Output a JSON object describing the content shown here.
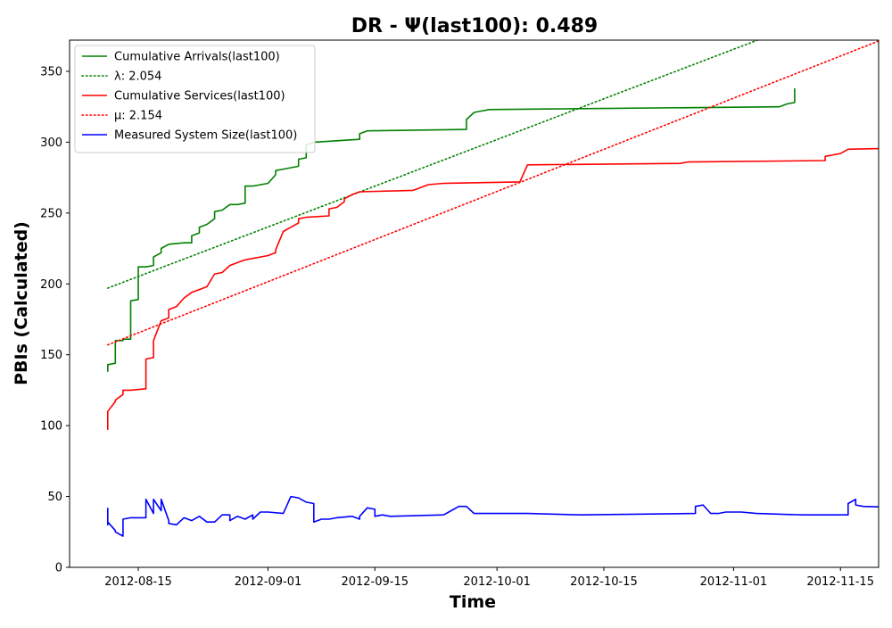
{
  "chart_data": {
    "type": "line",
    "title": "DR -  Ψ(last100): 0.489",
    "xlabel": "Time",
    "ylabel": "PBIs (Calculated)",
    "xlim": [
      "2012-08-06",
      "2012-11-20"
    ],
    "ylim": [
      0,
      372
    ],
    "xticks": [
      "2012-08-15",
      "2012-09-01",
      "2012-09-15",
      "2012-10-01",
      "2012-10-15",
      "2012-11-01",
      "2012-11-15"
    ],
    "yticks": [
      0,
      50,
      100,
      150,
      200,
      250,
      300,
      350
    ],
    "grid": false,
    "legend_position": "top-left",
    "series": [
      {
        "name": "Cumulative Arrivals(last100)",
        "color": "#008000",
        "style": "solid",
        "points": [
          [
            "2012-08-11",
            138
          ],
          [
            "2012-08-11",
            143
          ],
          [
            "2012-08-12",
            144
          ],
          [
            "2012-08-12",
            160
          ],
          [
            "2012-08-13",
            160
          ],
          [
            "2012-08-13",
            161
          ],
          [
            "2012-08-14",
            161
          ],
          [
            "2012-08-14",
            185
          ],
          [
            "2012-08-14",
            188
          ],
          [
            "2012-08-15",
            189
          ],
          [
            "2012-08-15",
            212
          ],
          [
            "2012-08-16",
            212
          ],
          [
            "2012-08-17",
            213
          ],
          [
            "2012-08-17",
            219
          ],
          [
            "2012-08-18",
            222
          ],
          [
            "2012-08-18",
            225
          ],
          [
            "2012-08-19",
            228
          ],
          [
            "2012-08-21",
            229
          ],
          [
            "2012-08-22",
            229
          ],
          [
            "2012-08-22",
            234
          ],
          [
            "2012-08-23",
            236
          ],
          [
            "2012-08-23",
            240
          ],
          [
            "2012-08-24",
            242
          ],
          [
            "2012-08-25",
            246
          ],
          [
            "2012-08-25",
            251
          ],
          [
            "2012-08-26",
            252
          ],
          [
            "2012-08-27",
            256
          ],
          [
            "2012-08-28",
            256
          ],
          [
            "2012-08-29",
            257
          ],
          [
            "2012-08-29",
            269
          ],
          [
            "2012-08-30",
            269
          ],
          [
            "2012-09-01",
            271
          ],
          [
            "2012-09-02",
            277
          ],
          [
            "2012-09-02",
            280
          ],
          [
            "2012-09-03",
            281
          ],
          [
            "2012-09-04",
            282
          ],
          [
            "2012-09-05",
            283
          ],
          [
            "2012-09-05",
            288
          ],
          [
            "2012-09-06",
            289
          ],
          [
            "2012-09-06",
            298
          ],
          [
            "2012-09-07",
            300
          ],
          [
            "2012-09-10",
            301
          ],
          [
            "2012-09-13",
            302
          ],
          [
            "2012-09-13",
            306
          ],
          [
            "2012-09-14",
            308
          ],
          [
            "2012-09-27",
            309
          ],
          [
            "2012-09-27",
            316
          ],
          [
            "2012-09-28",
            321
          ],
          [
            "2012-09-29",
            322
          ],
          [
            "2012-09-30",
            323
          ],
          [
            "2012-11-07",
            325
          ],
          [
            "2012-11-08",
            327
          ],
          [
            "2012-11-09",
            328
          ],
          [
            "2012-11-09",
            338
          ]
        ]
      },
      {
        "name": "λ: 2.054",
        "color": "#008000",
        "style": "dotted",
        "points": [
          [
            "2012-08-11",
            197
          ],
          [
            "2012-11-09",
            382
          ]
        ]
      },
      {
        "name": "Cumulative Services(last100)",
        "color": "#ff0000",
        "style": "solid",
        "points": [
          [
            "2012-08-11",
            97
          ],
          [
            "2012-08-11",
            110
          ],
          [
            "2012-08-12",
            117
          ],
          [
            "2012-08-12",
            118
          ],
          [
            "2012-08-13",
            122
          ],
          [
            "2012-08-13",
            125
          ],
          [
            "2012-08-14",
            125
          ],
          [
            "2012-08-16",
            126
          ],
          [
            "2012-08-16",
            140
          ],
          [
            "2012-08-16",
            147
          ],
          [
            "2012-08-17",
            148
          ],
          [
            "2012-08-17",
            160
          ],
          [
            "2012-08-18",
            174
          ],
          [
            "2012-08-19",
            176
          ],
          [
            "2012-08-19",
            182
          ],
          [
            "2012-08-20",
            184
          ],
          [
            "2012-08-21",
            190
          ],
          [
            "2012-08-22",
            194
          ],
          [
            "2012-08-23",
            196
          ],
          [
            "2012-08-24",
            198
          ],
          [
            "2012-08-25",
            207
          ],
          [
            "2012-08-26",
            208
          ],
          [
            "2012-08-27",
            213
          ],
          [
            "2012-08-28",
            215
          ],
          [
            "2012-08-29",
            217
          ],
          [
            "2012-09-01",
            220
          ],
          [
            "2012-09-02",
            222
          ],
          [
            "2012-09-02",
            224
          ],
          [
            "2012-09-03",
            237
          ],
          [
            "2012-09-04",
            240
          ],
          [
            "2012-09-05",
            243
          ],
          [
            "2012-09-05",
            246
          ],
          [
            "2012-09-06",
            247
          ],
          [
            "2012-09-09",
            248
          ],
          [
            "2012-09-09",
            253
          ],
          [
            "2012-09-10",
            254
          ],
          [
            "2012-09-11",
            258
          ],
          [
            "2012-09-11",
            260
          ],
          [
            "2012-09-12",
            263
          ],
          [
            "2012-09-13",
            265
          ],
          [
            "2012-09-20",
            266
          ],
          [
            "2012-09-21",
            268
          ],
          [
            "2012-09-22",
            270
          ],
          [
            "2012-09-24",
            271
          ],
          [
            "2012-10-04",
            272
          ],
          [
            "2012-10-05",
            284
          ],
          [
            "2012-10-25",
            285
          ],
          [
            "2012-10-26",
            286
          ],
          [
            "2012-11-13",
            287
          ],
          [
            "2012-11-13",
            290
          ],
          [
            "2012-11-15",
            292
          ],
          [
            "2012-11-16",
            295
          ],
          [
            "2012-11-25",
            296
          ]
        ]
      },
      {
        "name": "μ: 2.154",
        "color": "#ff0000",
        "style": "dotted",
        "points": [
          [
            "2012-08-11",
            157
          ],
          [
            "2012-11-25",
            382
          ]
        ]
      },
      {
        "name": "Measured System Size(last100)",
        "color": "#0000ff",
        "style": "solid",
        "points": [
          [
            "2012-08-11",
            42
          ],
          [
            "2012-08-11",
            30
          ],
          [
            "2012-08-11",
            32
          ],
          [
            "2012-08-12",
            26
          ],
          [
            "2012-08-12",
            25
          ],
          [
            "2012-08-13",
            22
          ],
          [
            "2012-08-13",
            34
          ],
          [
            "2012-08-14",
            35
          ],
          [
            "2012-08-16",
            35
          ],
          [
            "2012-08-16",
            48
          ],
          [
            "2012-08-17",
            38
          ],
          [
            "2012-08-17",
            48
          ],
          [
            "2012-08-18",
            40
          ],
          [
            "2012-08-18",
            48
          ],
          [
            "2012-08-19",
            33
          ],
          [
            "2012-08-19",
            31
          ],
          [
            "2012-08-20",
            30
          ],
          [
            "2012-08-21",
            35
          ],
          [
            "2012-08-22",
            33
          ],
          [
            "2012-08-23",
            36
          ],
          [
            "2012-08-23",
            36
          ],
          [
            "2012-08-24",
            32
          ],
          [
            "2012-08-25",
            32
          ],
          [
            "2012-08-26",
            37
          ],
          [
            "2012-08-27",
            37
          ],
          [
            "2012-08-27",
            33
          ],
          [
            "2012-08-28",
            36
          ],
          [
            "2012-08-29",
            34
          ],
          [
            "2012-08-30",
            37
          ],
          [
            "2012-08-30",
            34
          ],
          [
            "2012-08-31",
            39
          ],
          [
            "2012-09-01",
            39
          ],
          [
            "2012-09-03",
            38
          ],
          [
            "2012-09-04",
            50
          ],
          [
            "2012-09-05",
            49
          ],
          [
            "2012-09-06",
            46
          ],
          [
            "2012-09-07",
            45
          ],
          [
            "2012-09-07",
            32
          ],
          [
            "2012-09-08",
            34
          ],
          [
            "2012-09-09",
            34
          ],
          [
            "2012-09-10",
            35
          ],
          [
            "2012-09-12",
            36
          ],
          [
            "2012-09-13",
            34
          ],
          [
            "2012-09-13",
            36
          ],
          [
            "2012-09-14",
            42
          ],
          [
            "2012-09-15",
            41
          ],
          [
            "2012-09-15",
            36
          ],
          [
            "2012-09-16",
            37
          ],
          [
            "2012-09-17",
            36
          ],
          [
            "2012-09-24",
            37
          ],
          [
            "2012-09-25",
            40
          ],
          [
            "2012-09-26",
            43
          ],
          [
            "2012-09-27",
            43
          ],
          [
            "2012-09-28",
            38
          ],
          [
            "2012-10-05",
            38
          ],
          [
            "2012-10-12",
            37
          ],
          [
            "2012-10-27",
            38
          ],
          [
            "2012-10-27",
            43
          ],
          [
            "2012-10-28",
            44
          ],
          [
            "2012-10-29",
            38
          ],
          [
            "2012-10-30",
            38
          ],
          [
            "2012-10-31",
            39
          ],
          [
            "2012-11-02",
            39
          ],
          [
            "2012-11-04",
            38
          ],
          [
            "2012-11-10",
            37
          ],
          [
            "2012-11-16",
            37
          ],
          [
            "2012-11-16",
            45
          ],
          [
            "2012-11-17",
            48
          ],
          [
            "2012-11-17",
            44
          ],
          [
            "2012-11-18",
            43
          ],
          [
            "2012-11-25",
            42
          ]
        ]
      }
    ]
  }
}
